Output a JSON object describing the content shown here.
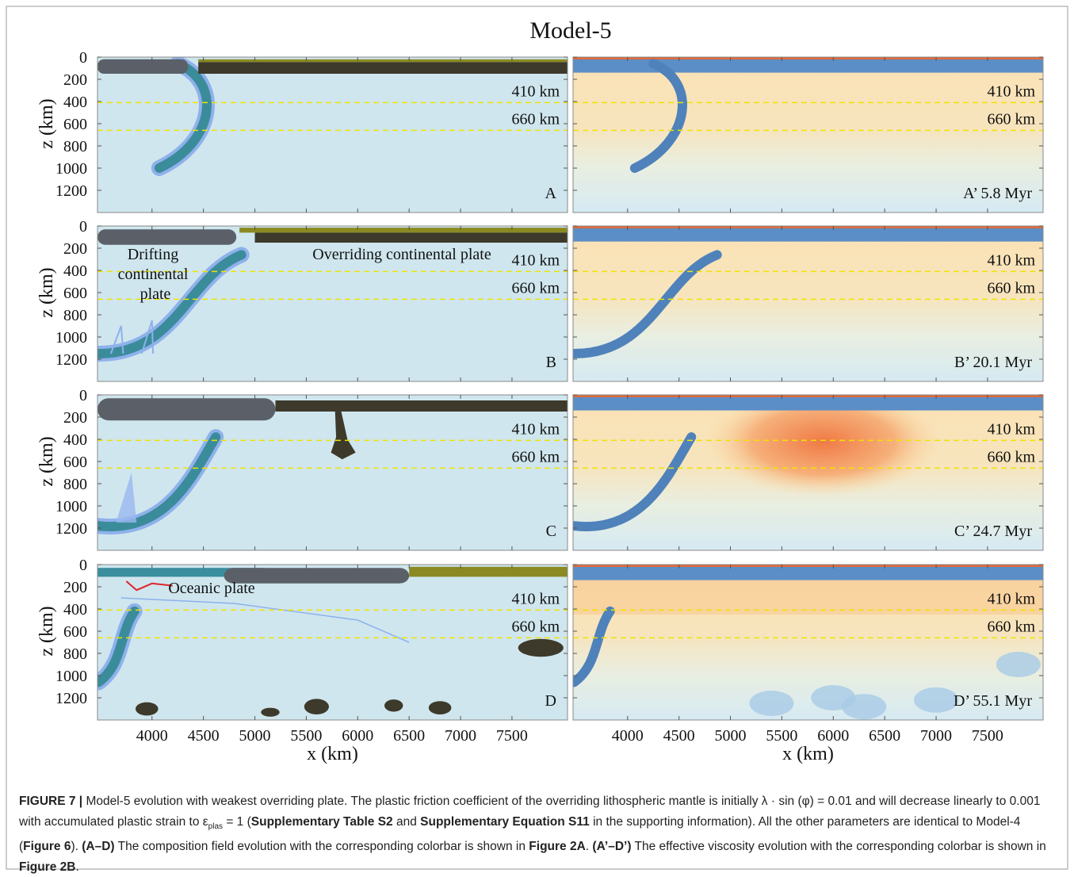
{
  "figure": {
    "title": "Model-5",
    "x_label": "x (km)",
    "y_label": "z (km)",
    "xlim": [
      3470,
      8040
    ],
    "ylim": [
      0,
      1400
    ],
    "xticks": [
      4000,
      4500,
      5000,
      5500,
      6000,
      6500,
      7000,
      7500
    ],
    "yticks": [
      0,
      200,
      400,
      600,
      800,
      1000,
      1200
    ],
    "reference_depths": [
      {
        "value": 410,
        "label": "410 km"
      },
      {
        "value": 660,
        "label": "660 km"
      }
    ],
    "panels": [
      {
        "label": "A"
      },
      {
        "label": "A’ 5.8 Myr"
      },
      {
        "label": "B",
        "annotations": [
          "Drifting",
          "continental",
          "plate",
          "Overriding continental plate"
        ]
      },
      {
        "label": "B’ 20.1 Myr"
      },
      {
        "label": "C"
      },
      {
        "label": "C’ 24.7 Myr"
      },
      {
        "label": "D",
        "annotations": [
          "Oceanic plate"
        ]
      },
      {
        "label": "D’ 55.1 Myr"
      }
    ]
  },
  "caption": {
    "parts": [
      "FIGURE 7 |",
      " Model-5 evolution with weakest overriding plate. The plastic friction coefficient of the overriding lithospheric mantle is initially λ · sin (φ) =  0.01 and will decrease linearly to 0.001 with accumulated plastic strain to ε",
      "plas",
      " = 1 (",
      "Supplementary Table S2",
      " and ",
      "Supplementary Equation S11",
      " in the supporting information). All the other parameters are identical to Model-4 (",
      "Figure 6",
      "). ",
      "(A–D)",
      " The composition field evolution with the corresponding colorbar is shown in ",
      "Figure 2A",
      ". ",
      "(A’–D’)",
      " The effective viscosity evolution with the corresponding colorbar is shown in ",
      "Figure 2B",
      "."
    ]
  }
}
